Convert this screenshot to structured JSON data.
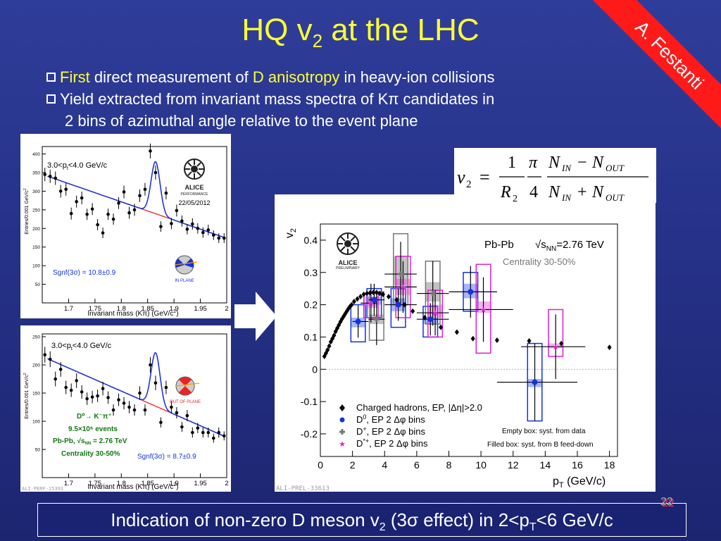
{
  "slide": {
    "title_main": "HQ v",
    "title_sub": "2",
    "title_rest": " at the LHC",
    "author": "A. Festanti",
    "bullets": [
      {
        "parts": [
          "First",
          " direct measurement of ",
          "D anisotropy",
          " in heavy-ion collisions"
        ]
      },
      {
        "text": "Yield extracted from invariant mass spectra of Kπ candidates in"
      },
      {
        "text": "2 bins of azimuthal angle relative to the event plane"
      }
    ],
    "footer_pre": "Indication of non-zero D meson v",
    "footer_sub": "2",
    "footer_mid": " (3σ effect) in 2<p",
    "footer_sub2": "T",
    "footer_post": "<6 GeV/c",
    "page_number": "22"
  },
  "formula": {
    "lhs": "v",
    "lhs_sub": "2",
    "eq": "=",
    "one": "1",
    "r": "R",
    "r_sub": "2",
    "pi": "π",
    "four": "4",
    "n": "N",
    "in": "IN",
    "out": "OUT",
    "minus": "−",
    "plus": "+"
  },
  "colors": {
    "background": "#263288",
    "title": "#ffff33",
    "ribbon": "#ff1a1a",
    "fit_line": "#2233dd",
    "background_fit": "#ee2222",
    "d0": "#1133dd",
    "dplus": "#777777",
    "dstar": "#dd22cc"
  },
  "chart_data": [
    {
      "type": "scatter",
      "panel": "in-plane",
      "title": "3.0<p",
      "title_sub": "t",
      "title_rest": "<4.0 GeV/c",
      "xlabel": "Invariant mass (Kπ) (GeV/c",
      "xlabel_sup": "2",
      "xlabel_end": ")",
      "ylabel": "Entries/0.001 GeV/c",
      "ylabel_sup": "2",
      "xlim": [
        1.65,
        2.0
      ],
      "ylim": [
        0,
        420
      ],
      "xticks": [
        "1.7",
        "1.75",
        "1.8",
        "1.85",
        "1.9",
        "1.95",
        "2"
      ],
      "xtick_values": [
        1.7,
        1.75,
        1.8,
        1.85,
        1.9,
        1.95,
        2.0
      ],
      "yticks": [
        "50",
        "100",
        "150",
        "200",
        "250",
        "300",
        "350",
        "400"
      ],
      "ytick_values": [
        50,
        100,
        150,
        200,
        250,
        300,
        350,
        400
      ],
      "significance": "Sgnf(3σ) = 10.8±0.9",
      "logo_text": "ALICE",
      "logo_sub": "PERFORMANCE",
      "date": "22/05/2012",
      "region_label": "IN PLANE",
      "x": [
        1.655,
        1.665,
        1.675,
        1.685,
        1.695,
        1.705,
        1.715,
        1.725,
        1.735,
        1.745,
        1.755,
        1.765,
        1.775,
        1.785,
        1.795,
        1.805,
        1.815,
        1.825,
        1.835,
        1.845,
        1.855,
        1.865,
        1.875,
        1.885,
        1.895,
        1.905,
        1.915,
        1.925,
        1.935,
        1.945,
        1.955,
        1.965,
        1.975,
        1.985,
        1.995
      ],
      "y": [
        345,
        340,
        335,
        300,
        305,
        240,
        272,
        282,
        238,
        252,
        210,
        188,
        238,
        225,
        268,
        298,
        242,
        250,
        288,
        305,
        408,
        350,
        205,
        295,
        213,
        248,
        220,
        198,
        212,
        200,
        189,
        196,
        182,
        174,
        174
      ],
      "yerr": [
        18,
        18,
        18,
        17,
        17,
        16,
        16,
        17,
        15,
        16,
        15,
        14,
        15,
        15,
        16,
        17,
        16,
        16,
        17,
        17,
        20,
        19,
        14,
        17,
        15,
        16,
        15,
        14,
        15,
        14,
        14,
        14,
        13,
        13,
        13
      ]
    },
    {
      "type": "scatter",
      "panel": "out-of-plane",
      "title": "3.0<p",
      "title_sub": "t",
      "title_rest": "<4.0 GeV/c",
      "xlabel": "Invariant mass (Kπ) (GeV/c",
      "xlabel_sup": "2",
      "xlabel_end": ")",
      "ylabel": "Entries/0.001 GeV/c",
      "ylabel_sup": "2",
      "xlim": [
        1.65,
        2.0
      ],
      "ylim": [
        0,
        255
      ],
      "xticks": [
        "1.7",
        "1.75",
        "1.8",
        "1.85",
        "1.9",
        "1.95",
        "2"
      ],
      "xtick_values": [
        1.7,
        1.75,
        1.8,
        1.85,
        1.9,
        1.95,
        2.0
      ],
      "yticks": [
        "50",
        "100",
        "150",
        "200",
        "250"
      ],
      "ytick_values": [
        50,
        100,
        150,
        200,
        250
      ],
      "significance": "Sgnf(3σ) = 8.7±0.9",
      "region_label": "OUT OF PLANE",
      "decay": "D⁰→ K⁻π⁺",
      "events": "9.5×10⁶ events",
      "system": "Pb-Pb, √s",
      "system_sub": "NN",
      "system_rest": " = 2.76 TeV",
      "centrality": "Centrality 30-50%",
      "watermark": "ALI-PERF-15391",
      "x": [
        1.655,
        1.665,
        1.675,
        1.685,
        1.695,
        1.705,
        1.715,
        1.725,
        1.735,
        1.745,
        1.755,
        1.765,
        1.775,
        1.785,
        1.795,
        1.805,
        1.815,
        1.825,
        1.835,
        1.845,
        1.855,
        1.865,
        1.875,
        1.885,
        1.895,
        1.905,
        1.915,
        1.925,
        1.935,
        1.945,
        1.955,
        1.965,
        1.975,
        1.985,
        1.995
      ],
      "y": [
        218,
        210,
        175,
        192,
        160,
        155,
        172,
        152,
        140,
        143,
        145,
        158,
        142,
        120,
        138,
        132,
        125,
        120,
        150,
        120,
        200,
        168,
        98,
        160,
        125,
        115,
        90,
        110,
        80,
        88,
        80,
        80,
        70,
        80,
        74
      ],
      "yerr": [
        14,
        14,
        13,
        13,
        12,
        12,
        13,
        12,
        11,
        11,
        11,
        12,
        11,
        10,
        11,
        11,
        11,
        10,
        12,
        10,
        14,
        13,
        9,
        12,
        11,
        10,
        9,
        10,
        9,
        9,
        9,
        9,
        8,
        9,
        8
      ]
    },
    {
      "type": "scatter",
      "panel": "v2-vs-pt",
      "xlabel": "p",
      "xlabel_sub": "T",
      "xlabel_rest": " (GeV/c)",
      "ylabel": "v",
      "ylabel_sub": "2",
      "xlim": [
        0,
        18.5
      ],
      "ylim": [
        -0.27,
        0.45
      ],
      "xticks": [
        "0",
        "2",
        "4",
        "6",
        "8",
        "10",
        "12",
        "14",
        "16",
        "18"
      ],
      "xtick_values": [
        0,
        2,
        4,
        6,
        8,
        10,
        12,
        14,
        16,
        18
      ],
      "yticks": [
        "-0.2",
        "-0.1",
        "0",
        "0.1",
        "0.2",
        "0.3",
        "0.4"
      ],
      "ytick_values": [
        -0.2,
        -0.1,
        0,
        0.1,
        0.2,
        0.3,
        0.4
      ],
      "system": "Pb-Pb",
      "energy_pre": "√s",
      "energy_sub": "NN",
      "energy_post": "=2.76 TeV",
      "centrality": "Centrality 30-50%",
      "logo_text": "ALICE",
      "logo_sub": "PRELIMINARY",
      "watermark": "ALI-PREL-33613",
      "note_empty": "Empty box: syst. from data",
      "note_filled": "Filled box: syst. from B feed-down",
      "legend": [
        {
          "label": "Charged hadrons, EP, |Δη|>2.0",
          "marker": "diamond",
          "color": "#000000"
        },
        {
          "label_pre": "D",
          "label_sup": "0",
          "label_post": ", EP 2 Δφ bins",
          "marker": "circle",
          "color": "#1133dd"
        },
        {
          "label_pre": "D",
          "label_sup": "+",
          "label_post": ", EP 2 Δφ bins",
          "marker": "cross",
          "color": "#777777"
        },
        {
          "label_pre": "D",
          "label_sup": "*+",
          "label_post": ", EP 2 Δφ bins",
          "marker": "star",
          "color": "#dd22cc"
        }
      ],
      "series": [
        {
          "name": "Charged hadrons, EP, |Δη|>2.0",
          "x": [
            0.25,
            0.35,
            0.45,
            0.55,
            0.65,
            0.75,
            0.85,
            0.95,
            1.05,
            1.15,
            1.25,
            1.35,
            1.45,
            1.55,
            1.65,
            1.75,
            1.85,
            1.95,
            2.1,
            2.3,
            2.5,
            2.7,
            2.9,
            3.1,
            3.3,
            3.5,
            3.7,
            3.9,
            4.25,
            4.75,
            5.25,
            5.75,
            6.5,
            7.5,
            8.5,
            9.5,
            11.0,
            13.0,
            15.0,
            18.0
          ],
          "y": [
            0.04,
            0.05,
            0.06,
            0.072,
            0.085,
            0.095,
            0.105,
            0.117,
            0.127,
            0.137,
            0.147,
            0.156,
            0.164,
            0.172,
            0.18,
            0.188,
            0.195,
            0.2,
            0.21,
            0.218,
            0.225,
            0.232,
            0.235,
            0.237,
            0.238,
            0.238,
            0.235,
            0.232,
            0.225,
            0.215,
            0.2,
            0.18,
            0.16,
            0.13,
            0.115,
            0.095,
            0.09,
            0.088,
            0.08,
            0.068
          ]
        },
        {
          "name": "D0, EP 2 Δφ bins",
          "x": [
            2.5,
            3.5,
            5.0,
            7.0,
            9.5,
            13.5
          ],
          "xerr": [
            0.5,
            0.5,
            1.0,
            1.0,
            1.5,
            2.5
          ],
          "y": [
            0.148,
            0.215,
            0.2,
            0.155,
            0.24,
            -0.04
          ],
          "yerr": [
            0.05,
            0.05,
            0.05,
            0.05,
            0.08,
            0.12
          ],
          "syst_low": [
            0.085,
            0.16,
            0.13,
            0.1,
            0.18,
            -0.16
          ],
          "syst_high": [
            0.2,
            0.25,
            0.25,
            0.195,
            0.3,
            0.08
          ],
          "fd_low": [
            0.13,
            0.2,
            0.18,
            0.14,
            0.22,
            -0.055
          ],
          "fd_high": [
            0.16,
            0.225,
            0.22,
            0.16,
            0.265,
            -0.03
          ]
        },
        {
          "name": "D+, EP 2 Δφ bins",
          "x": [
            3.5,
            5.0,
            7.0
          ],
          "xerr": [
            0.5,
            1.0,
            1.0
          ],
          "y": [
            0.155,
            0.295,
            0.235
          ],
          "yerr": [
            0.08,
            0.1,
            0.1
          ],
          "syst_low": [
            0.09,
            0.2,
            0.14
          ],
          "syst_high": [
            0.24,
            0.42,
            0.335
          ],
          "fd_low": [
            0.14,
            0.26,
            0.21
          ],
          "fd_high": [
            0.17,
            0.35,
            0.27
          ]
        },
        {
          "name": "D*+, EP 2 Δφ bins",
          "x": [
            3.0,
            5.0,
            7.0,
            10.0,
            14.5
          ],
          "xerr": [
            0.5,
            1.0,
            1.0,
            2.0,
            2.0
          ],
          "y": [
            0.205,
            0.255,
            0.175,
            0.185,
            0.07
          ],
          "yerr": [
            0.06,
            0.08,
            0.07,
            0.1,
            0.1
          ],
          "syst_low": [
            0.16,
            0.16,
            0.1,
            0.05,
            0.04
          ],
          "syst_high": [
            0.235,
            0.35,
            0.245,
            0.325,
            0.185
          ],
          "fd_low": [
            0.19,
            0.23,
            0.16,
            0.175,
            0.065
          ],
          "fd_high": [
            0.225,
            0.28,
            0.2,
            0.21,
            0.08
          ]
        }
      ]
    }
  ]
}
